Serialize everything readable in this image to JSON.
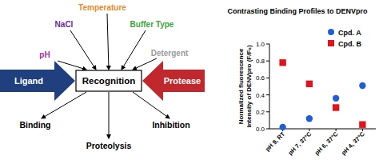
{
  "diagram": {
    "center": "Recognition",
    "inputs": [
      {
        "label": "Ligand",
        "color": "#1f3f7f"
      },
      {
        "label": "Protease",
        "color": "#c0282d"
      }
    ],
    "conditions": [
      {
        "label": "pH",
        "color": "#a02fa8"
      },
      {
        "label": "NaCl",
        "color": "#6a2c9e"
      },
      {
        "label": "Temperature",
        "color": "#ea8a2a"
      },
      {
        "label": "Buffer Type",
        "color": "#3aa53a"
      },
      {
        "label": "Detergent",
        "color": "#9a9a9a"
      }
    ],
    "outcomes": [
      "Binding",
      "Proteolysis",
      "Inhibition"
    ]
  },
  "chart_data": {
    "type": "scatter",
    "title": "Contrasting Binding Profiles to DENVpro",
    "y_label": "Normalized fluorescence intensity of DENVpro (F/F₀)",
    "categories": [
      "pH 9, RT",
      "pH 7, 37°C",
      "pH 6, 37°C",
      "pH 4, 37°C"
    ],
    "series": [
      {
        "name": "Cpd. A",
        "color": "#1f5fd6",
        "marker": "circle",
        "values": [
          0.02,
          0.12,
          0.36,
          0.51
        ]
      },
      {
        "name": "Cpd. B",
        "color": "#e0141e",
        "marker": "square",
        "values": [
          0.78,
          0.53,
          0.25,
          0.05
        ]
      }
    ],
    "ylim": [
      0,
      1.0
    ],
    "yticks": [
      {
        "value": 0,
        "label": "0.0"
      },
      0.2,
      0.4,
      0.6,
      0.8,
      {
        "value": 1.0,
        "label": "1.0"
      }
    ],
    "legend": "upper right",
    "grid": false
  }
}
